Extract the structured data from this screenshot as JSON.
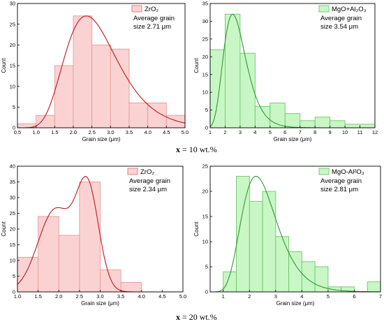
{
  "captions": [
    {
      "bold": "x",
      "rest": " = 10 wt.%"
    },
    {
      "bold": "x",
      "rest": " = 20 wt.%"
    }
  ],
  "chart_data": [
    {
      "type": "bar",
      "panel": "top-left",
      "xlabel": "Grain size (μm)",
      "ylabel": "Count",
      "xlim": [
        0.5,
        5.0
      ],
      "ylim": [
        0,
        30
      ],
      "xticks": [
        "0.5",
        "1.0",
        "1.5",
        "2.0",
        "2.5",
        "3.0",
        "3.5",
        "4.0",
        "4.5",
        "5.0"
      ],
      "yticks": [
        "0",
        "5",
        "10",
        "15",
        "20",
        "25",
        "30"
      ],
      "bin_edges": [
        0.5,
        1.0,
        1.5,
        2.0,
        2.5,
        3.0,
        3.5,
        4.0,
        4.5,
        5.0
      ],
      "values": [
        1,
        3,
        15,
        27,
        20,
        19,
        6,
        6,
        3
      ],
      "fit_curve": {
        "type": "log-normal",
        "peak_x": 2.35,
        "peak_y": 27
      },
      "legend": {
        "series": "ZrO₂",
        "line1": "Average grain",
        "line2": "size 2.71 μm",
        "position": "top-right"
      },
      "colors": {
        "fill": "#fbd2d2",
        "edge": "#e79a9a",
        "curve": "#c0161c",
        "swatch_fill": "#fbd2d2",
        "swatch_edge": "#d87c7c"
      }
    },
    {
      "type": "bar",
      "panel": "top-right",
      "xlabel": "Grain size (μm)",
      "ylabel": "Count",
      "xlim": [
        1,
        12
      ],
      "ylim": [
        0,
        35
      ],
      "xticks": [
        "1",
        "2",
        "3",
        "4",
        "5",
        "6",
        "7",
        "8",
        "9",
        "10",
        "11",
        "12"
      ],
      "yticks": [
        "0",
        "5",
        "10",
        "15",
        "20",
        "25",
        "30",
        "35"
      ],
      "bin_edges": [
        1,
        2,
        3,
        4,
        5,
        6,
        7,
        8,
        9,
        10,
        11,
        12
      ],
      "values": [
        22,
        32,
        21,
        6,
        7,
        4,
        2,
        3,
        2,
        1,
        1
      ],
      "fit_curve": {
        "type": "log-normal",
        "peak_x": 2.5,
        "peak_y": 32
      },
      "legend": {
        "series": "MgO+Al₂O₃",
        "line1": "Average grain",
        "line2": "size 3.54 μm",
        "position": "top-right"
      },
      "colors": {
        "fill": "#c8f7c5",
        "edge": "#6fc46a",
        "curve": "#2f9a2f",
        "swatch_fill": "#c8f7c5",
        "swatch_edge": "#6fc46a"
      }
    },
    {
      "type": "bar",
      "panel": "bottom-left",
      "xlabel": "Grain size (μm)",
      "ylabel": "Count",
      "xlim": [
        1.0,
        5.0
      ],
      "ylim": [
        0,
        40
      ],
      "xticks": [
        "1.0",
        "1.5",
        "2.0",
        "2.5",
        "3.0",
        "3.5",
        "4.0",
        "4.5",
        "5.0"
      ],
      "yticks": [
        "0",
        "5",
        "10",
        "15",
        "20",
        "25",
        "30",
        "35",
        "40"
      ],
      "bin_edges": [
        1.0,
        1.5,
        2.0,
        2.5,
        3.0,
        3.5,
        4.0,
        4.5,
        5.0
      ],
      "values": [
        11,
        24,
        18,
        35,
        7,
        3,
        0,
        0
      ],
      "fit_curve": {
        "type": "bimodal",
        "peaks": [
          {
            "x": 1.92,
            "y": 28.5
          },
          {
            "x": 2.7,
            "y": 35
          }
        ]
      },
      "legend": {
        "series": "ZrO₂",
        "line1": "Average grain",
        "line2": "size 2.34 μm",
        "position": "top-right"
      },
      "colors": {
        "fill": "#fbd2d2",
        "edge": "#e79a9a",
        "curve": "#c0161c",
        "swatch_fill": "#fbd2d2",
        "swatch_edge": "#d87c7c"
      }
    },
    {
      "type": "bar",
      "panel": "bottom-right",
      "xlabel": "Grain size (μm)",
      "ylabel": "Count",
      "xlim": [
        0.5,
        7.0
      ],
      "ylim": [
        0,
        25
      ],
      "xticks": [
        "1",
        "2",
        "3",
        "4",
        "5",
        "6",
        "7"
      ],
      "yticks": [
        "0",
        "5",
        "10",
        "15",
        "20",
        "25"
      ],
      "bin_edges": [
        1.0,
        1.5,
        2.0,
        2.5,
        3.0,
        3.5,
        4.0,
        4.5,
        5.0,
        5.5,
        6.0,
        6.5,
        7.0
      ],
      "values": [
        4,
        23,
        18,
        20,
        11,
        8,
        6,
        5,
        1,
        1,
        0,
        2
      ],
      "fit_curve": {
        "type": "log-normal",
        "peak_x": 2.25,
        "peak_y": 23
      },
      "legend": {
        "series": "MgO-Al²O₃",
        "line1": "Average grain",
        "line2": "size 2.81 μm",
        "position": "top-right"
      },
      "colors": {
        "fill": "#c8f7c5",
        "edge": "#6fc46a",
        "curve": "#2f9a2f",
        "swatch_fill": "#c8f7c5",
        "swatch_edge": "#6fc46a"
      }
    }
  ]
}
